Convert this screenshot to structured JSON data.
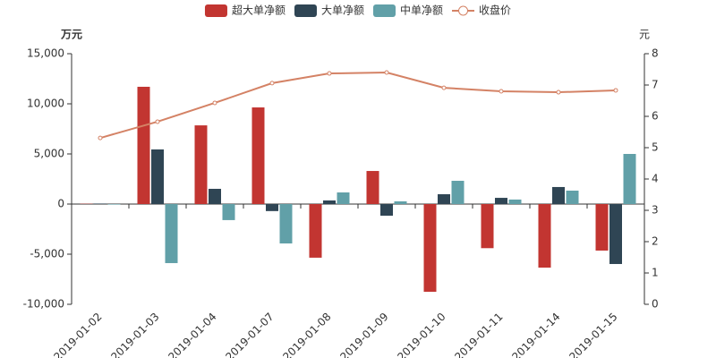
{
  "chart_data": {
    "type": "bar",
    "y_label": "万元",
    "y2_label": "元",
    "categories": [
      "2019-01-02",
      "2019-01-03",
      "2019-01-04",
      "2019-01-07",
      "2019-01-08",
      "2019-01-09",
      "2019-01-10",
      "2019-01-11",
      "2019-01-14",
      "2019-01-15"
    ],
    "series": [
      {
        "name": "超大单净额",
        "type": "bar",
        "color": "#c23531",
        "values": [
          30,
          11700,
          7850,
          9640,
          -5350,
          3300,
          -8750,
          -4400,
          -6340,
          -4640
        ]
      },
      {
        "name": "大单净额",
        "type": "bar",
        "color": "#2f4554",
        "values": [
          50,
          5450,
          1520,
          -700,
          360,
          -1160,
          980,
          620,
          1700,
          -5980
        ]
      },
      {
        "name": "中单净额",
        "type": "bar",
        "color": "#61a0a8",
        "values": [
          -50,
          -5890,
          -1600,
          -3930,
          1160,
          270,
          2320,
          450,
          1340,
          5000
        ]
      },
      {
        "name": "收盘价",
        "type": "line",
        "axis": "y2",
        "color": "#d48265",
        "values": [
          5.31,
          5.83,
          6.43,
          7.06,
          7.37,
          7.4,
          6.91,
          6.8,
          6.77,
          6.83
        ]
      }
    ],
    "ylim": [
      -10000,
      15000
    ],
    "yticks": [
      {
        "value": -10000,
        "label": "-10,000"
      },
      {
        "value": -5000,
        "label": "-5,000"
      },
      0,
      {
        "value": 5000,
        "label": "5,000"
      },
      {
        "value": 10000,
        "label": "10,000"
      },
      {
        "value": 15000,
        "label": "15,000"
      }
    ],
    "y2lim": [
      0,
      8
    ],
    "y2ticks": [
      0,
      1,
      2,
      3,
      4,
      5,
      6,
      7,
      8
    ],
    "grid": false,
    "legend": "top"
  }
}
